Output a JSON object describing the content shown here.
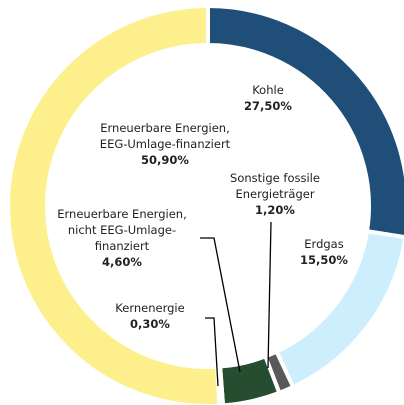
{
  "chart_data": {
    "type": "donut",
    "categories": [
      "Kohle",
      "Erdgas",
      "Sonstige fossile Energieträger",
      "Erneuerbare Energien, nicht EEG-Umlage-finanziert",
      "Kernenergie",
      "Erneuerbare Energien, EEG-Umlage-finanziert"
    ],
    "values": [
      27.5,
      15.5,
      1.2,
      4.6,
      0.3,
      50.9
    ],
    "value_labels": [
      "27,50%",
      "15,50%",
      "1,20%",
      "4,60%",
      "0,30%",
      "50,90%"
    ],
    "colors": [
      "#1f4e79",
      "#cdeefc",
      "#595959",
      "#264d30",
      "#eeeeee",
      "#fdf08c"
    ]
  }
}
